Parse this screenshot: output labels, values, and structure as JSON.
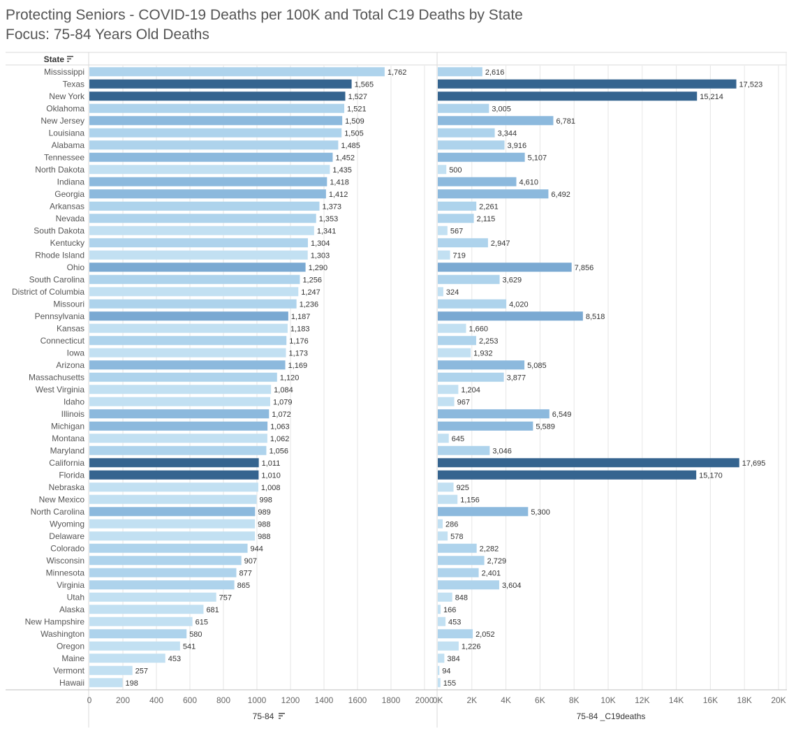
{
  "title": "Protecting Seniors - COVID-19 Deaths per 100K and Total C19 Deaths by State",
  "subtitle": "Focus: 75-84 Years Old Deaths",
  "row_header": "State",
  "colors": {
    "lightest": "#c2e0f2",
    "light": "#aed3ec",
    "mid": "#8cb9dd",
    "strong": "#7aa9d2",
    "dark": "#35648f",
    "grid": "#e6e6e6",
    "axis": "#cccccc"
  },
  "chart_data": [
    {
      "type": "bar",
      "orientation": "horizontal",
      "measure": "75-84",
      "xlabel": "75-84",
      "xlim": [
        0,
        2000
      ],
      "ticks": [
        "0",
        "200",
        "400",
        "600",
        "800",
        "1000",
        "1200",
        "1400",
        "1600",
        "1800",
        "2000"
      ],
      "tick_values": [
        0,
        200,
        400,
        600,
        800,
        1000,
        1200,
        1400,
        1600,
        1800,
        2000
      ],
      "color_by": "75-84 _C19deaths"
    },
    {
      "type": "bar",
      "orientation": "horizontal",
      "measure": "75-84 _C19deaths",
      "xlabel": "75-84 _C19deaths",
      "xlim": [
        0,
        20000
      ],
      "ticks": [
        "0K",
        "2K",
        "4K",
        "6K",
        "8K",
        "10K",
        "12K",
        "14K",
        "16K",
        "18K",
        "20K"
      ],
      "tick_values": [
        0,
        2000,
        4000,
        6000,
        8000,
        10000,
        12000,
        14000,
        16000,
        18000,
        20000
      ]
    }
  ],
  "states": [
    {
      "state": "Mississippi",
      "rate": 1762,
      "rate_label": "1,762",
      "deaths": 2616,
      "deaths_label": "2,616"
    },
    {
      "state": "Texas",
      "rate": 1565,
      "rate_label": "1,565",
      "deaths": 17523,
      "deaths_label": "17,523"
    },
    {
      "state": "New York",
      "rate": 1527,
      "rate_label": "1,527",
      "deaths": 15214,
      "deaths_label": "15,214"
    },
    {
      "state": "Oklahoma",
      "rate": 1521,
      "rate_label": "1,521",
      "deaths": 3005,
      "deaths_label": "3,005"
    },
    {
      "state": "New Jersey",
      "rate": 1509,
      "rate_label": "1,509",
      "deaths": 6781,
      "deaths_label": "6,781"
    },
    {
      "state": "Louisiana",
      "rate": 1505,
      "rate_label": "1,505",
      "deaths": 3344,
      "deaths_label": "3,344"
    },
    {
      "state": "Alabama",
      "rate": 1485,
      "rate_label": "1,485",
      "deaths": 3916,
      "deaths_label": "3,916"
    },
    {
      "state": "Tennessee",
      "rate": 1452,
      "rate_label": "1,452",
      "deaths": 5107,
      "deaths_label": "5,107"
    },
    {
      "state": "North Dakota",
      "rate": 1435,
      "rate_label": "1,435",
      "deaths": 500,
      "deaths_label": "500"
    },
    {
      "state": "Indiana",
      "rate": 1418,
      "rate_label": "1,418",
      "deaths": 4610,
      "deaths_label": "4,610"
    },
    {
      "state": "Georgia",
      "rate": 1412,
      "rate_label": "1,412",
      "deaths": 6492,
      "deaths_label": "6,492"
    },
    {
      "state": "Arkansas",
      "rate": 1373,
      "rate_label": "1,373",
      "deaths": 2261,
      "deaths_label": "2,261"
    },
    {
      "state": "Nevada",
      "rate": 1353,
      "rate_label": "1,353",
      "deaths": 2115,
      "deaths_label": "2,115"
    },
    {
      "state": "South Dakota",
      "rate": 1341,
      "rate_label": "1,341",
      "deaths": 567,
      "deaths_label": "567"
    },
    {
      "state": "Kentucky",
      "rate": 1304,
      "rate_label": "1,304",
      "deaths": 2947,
      "deaths_label": "2,947"
    },
    {
      "state": "Rhode Island",
      "rate": 1303,
      "rate_label": "1,303",
      "deaths": 719,
      "deaths_label": "719"
    },
    {
      "state": "Ohio",
      "rate": 1290,
      "rate_label": "1,290",
      "deaths": 7856,
      "deaths_label": "7,856"
    },
    {
      "state": "South Carolina",
      "rate": 1256,
      "rate_label": "1,256",
      "deaths": 3629,
      "deaths_label": "3,629"
    },
    {
      "state": "District of Columbia",
      "rate": 1247,
      "rate_label": "1,247",
      "deaths": 324,
      "deaths_label": "324"
    },
    {
      "state": "Missouri",
      "rate": 1236,
      "rate_label": "1,236",
      "deaths": 4020,
      "deaths_label": "4,020"
    },
    {
      "state": "Pennsylvania",
      "rate": 1187,
      "rate_label": "1,187",
      "deaths": 8518,
      "deaths_label": "8,518"
    },
    {
      "state": "Kansas",
      "rate": 1183,
      "rate_label": "1,183",
      "deaths": 1660,
      "deaths_label": "1,660"
    },
    {
      "state": "Connecticut",
      "rate": 1176,
      "rate_label": "1,176",
      "deaths": 2253,
      "deaths_label": "2,253"
    },
    {
      "state": "Iowa",
      "rate": 1173,
      "rate_label": "1,173",
      "deaths": 1932,
      "deaths_label": "1,932"
    },
    {
      "state": "Arizona",
      "rate": 1169,
      "rate_label": "1,169",
      "deaths": 5085,
      "deaths_label": "5,085"
    },
    {
      "state": "Massachusetts",
      "rate": 1120,
      "rate_label": "1,120",
      "deaths": 3877,
      "deaths_label": "3,877"
    },
    {
      "state": "West Virginia",
      "rate": 1084,
      "rate_label": "1,084",
      "deaths": 1204,
      "deaths_label": "1,204"
    },
    {
      "state": "Idaho",
      "rate": 1079,
      "rate_label": "1,079",
      "deaths": 967,
      "deaths_label": "967"
    },
    {
      "state": "Illinois",
      "rate": 1072,
      "rate_label": "1,072",
      "deaths": 6549,
      "deaths_label": "6,549"
    },
    {
      "state": "Michigan",
      "rate": 1063,
      "rate_label": "1,063",
      "deaths": 5589,
      "deaths_label": "5,589"
    },
    {
      "state": "Montana",
      "rate": 1062,
      "rate_label": "1,062",
      "deaths": 645,
      "deaths_label": "645"
    },
    {
      "state": "Maryland",
      "rate": 1056,
      "rate_label": "1,056",
      "deaths": 3046,
      "deaths_label": "3,046"
    },
    {
      "state": "California",
      "rate": 1011,
      "rate_label": "1,011",
      "deaths": 17695,
      "deaths_label": "17,695"
    },
    {
      "state": "Florida",
      "rate": 1010,
      "rate_label": "1,010",
      "deaths": 15170,
      "deaths_label": "15,170"
    },
    {
      "state": "Nebraska",
      "rate": 1008,
      "rate_label": "1,008",
      "deaths": 925,
      "deaths_label": "925"
    },
    {
      "state": "New Mexico",
      "rate": 998,
      "rate_label": "998",
      "deaths": 1156,
      "deaths_label": "1,156"
    },
    {
      "state": "North Carolina",
      "rate": 989,
      "rate_label": "989",
      "deaths": 5300,
      "deaths_label": "5,300"
    },
    {
      "state": "Wyoming",
      "rate": 988,
      "rate_label": "988",
      "deaths": 286,
      "deaths_label": "286"
    },
    {
      "state": "Delaware",
      "rate": 988,
      "rate_label": "988",
      "deaths": 578,
      "deaths_label": "578"
    },
    {
      "state": "Colorado",
      "rate": 944,
      "rate_label": "944",
      "deaths": 2282,
      "deaths_label": "2,282"
    },
    {
      "state": "Wisconsin",
      "rate": 907,
      "rate_label": "907",
      "deaths": 2729,
      "deaths_label": "2,729"
    },
    {
      "state": "Minnesota",
      "rate": 877,
      "rate_label": "877",
      "deaths": 2401,
      "deaths_label": "2,401"
    },
    {
      "state": "Virginia",
      "rate": 865,
      "rate_label": "865",
      "deaths": 3604,
      "deaths_label": "3,604"
    },
    {
      "state": "Utah",
      "rate": 757,
      "rate_label": "757",
      "deaths": 848,
      "deaths_label": "848"
    },
    {
      "state": "Alaska",
      "rate": 681,
      "rate_label": "681",
      "deaths": 166,
      "deaths_label": "166"
    },
    {
      "state": "New Hampshire",
      "rate": 615,
      "rate_label": "615",
      "deaths": 453,
      "deaths_label": "453"
    },
    {
      "state": "Washington",
      "rate": 580,
      "rate_label": "580",
      "deaths": 2052,
      "deaths_label": "2,052"
    },
    {
      "state": "Oregon",
      "rate": 541,
      "rate_label": "541",
      "deaths": 1226,
      "deaths_label": "1,226"
    },
    {
      "state": "Maine",
      "rate": 453,
      "rate_label": "453",
      "deaths": 384,
      "deaths_label": "384"
    },
    {
      "state": "Vermont",
      "rate": 257,
      "rate_label": "257",
      "deaths": 94,
      "deaths_label": "94"
    },
    {
      "state": "Hawaii",
      "rate": 198,
      "rate_label": "198",
      "deaths": 155,
      "deaths_label": "155"
    }
  ]
}
